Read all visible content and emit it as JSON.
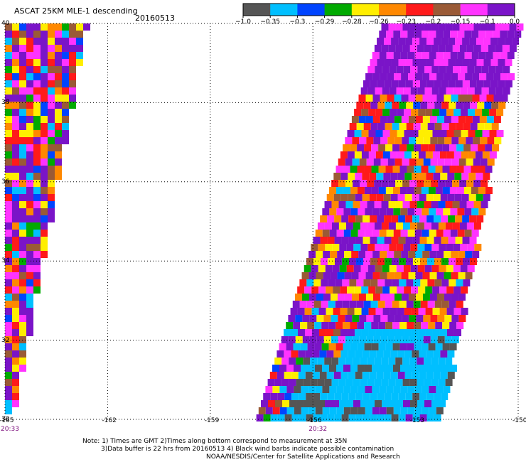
{
  "header": {
    "title": "ASCAT 25KM MLE-1 descending",
    "date": "20160513"
  },
  "colorbar": {
    "colors": [
      "#555555",
      "#00bfff",
      "#0044ff",
      "#00aa00",
      "#ffee00",
      "#ff8800",
      "#ff1a1a",
      "#9a5a36",
      "#ff33ff",
      "#7a14c8"
    ],
    "ticks": [
      "−1.0",
      "−0.35",
      "−0.3",
      "−0.29",
      "−0.28",
      "−0.26",
      "−0.23",
      "−0.2",
      "−0.15",
      "−0.1",
      "0.0"
    ]
  },
  "map": {
    "lon_range": [
      -165,
      -150
    ],
    "lat_range": [
      30,
      40
    ],
    "lon_ticks": [
      {
        "value": -165,
        "label": "-165"
      },
      {
        "value": -162,
        "label": "-162"
      },
      {
        "value": -159,
        "label": "-159"
      },
      {
        "value": -156,
        "label": "-156"
      },
      {
        "value": -153,
        "label": "-153"
      },
      {
        "value": -150,
        "label": "-150"
      }
    ],
    "lat_ticks": [
      {
        "value": 40,
        "label": "40"
      },
      {
        "value": 38,
        "label": "38"
      },
      {
        "value": 36,
        "label": "36"
      },
      {
        "value": 34,
        "label": "34"
      },
      {
        "value": 32,
        "label": "32"
      },
      {
        "value": 30,
        "label": "30"
      }
    ],
    "pass_times": [
      {
        "label": "20:33",
        "lon": -165
      },
      {
        "label": "20:32",
        "lon": -156
      }
    ],
    "swaths": [
      {
        "name": "west-swath",
        "top_edges": [
          -165,
          -162.7
        ],
        "bottom_edges": [
          -165,
          -164.8
        ],
        "lat_top": 40,
        "lat_bottom": 30.3
      },
      {
        "name": "east-swath",
        "top_edges": [
          -154.0,
          -150.0
        ],
        "bottom_edges": [
          -157.7,
          -152.3
        ],
        "lat_top": 40,
        "lat_bottom": 30
      }
    ]
  },
  "notes": {
    "line1": "Note: 1) Times are GMT 2)Times along bottom correspond to measurement at 35N",
    "line2": "3)Data buffer is 22 hrs from 20160513 4) Black wind barbs indicate possible contamination",
    "line3": "NOAA/NESDIS/Center for Satellite Applications and Research"
  }
}
